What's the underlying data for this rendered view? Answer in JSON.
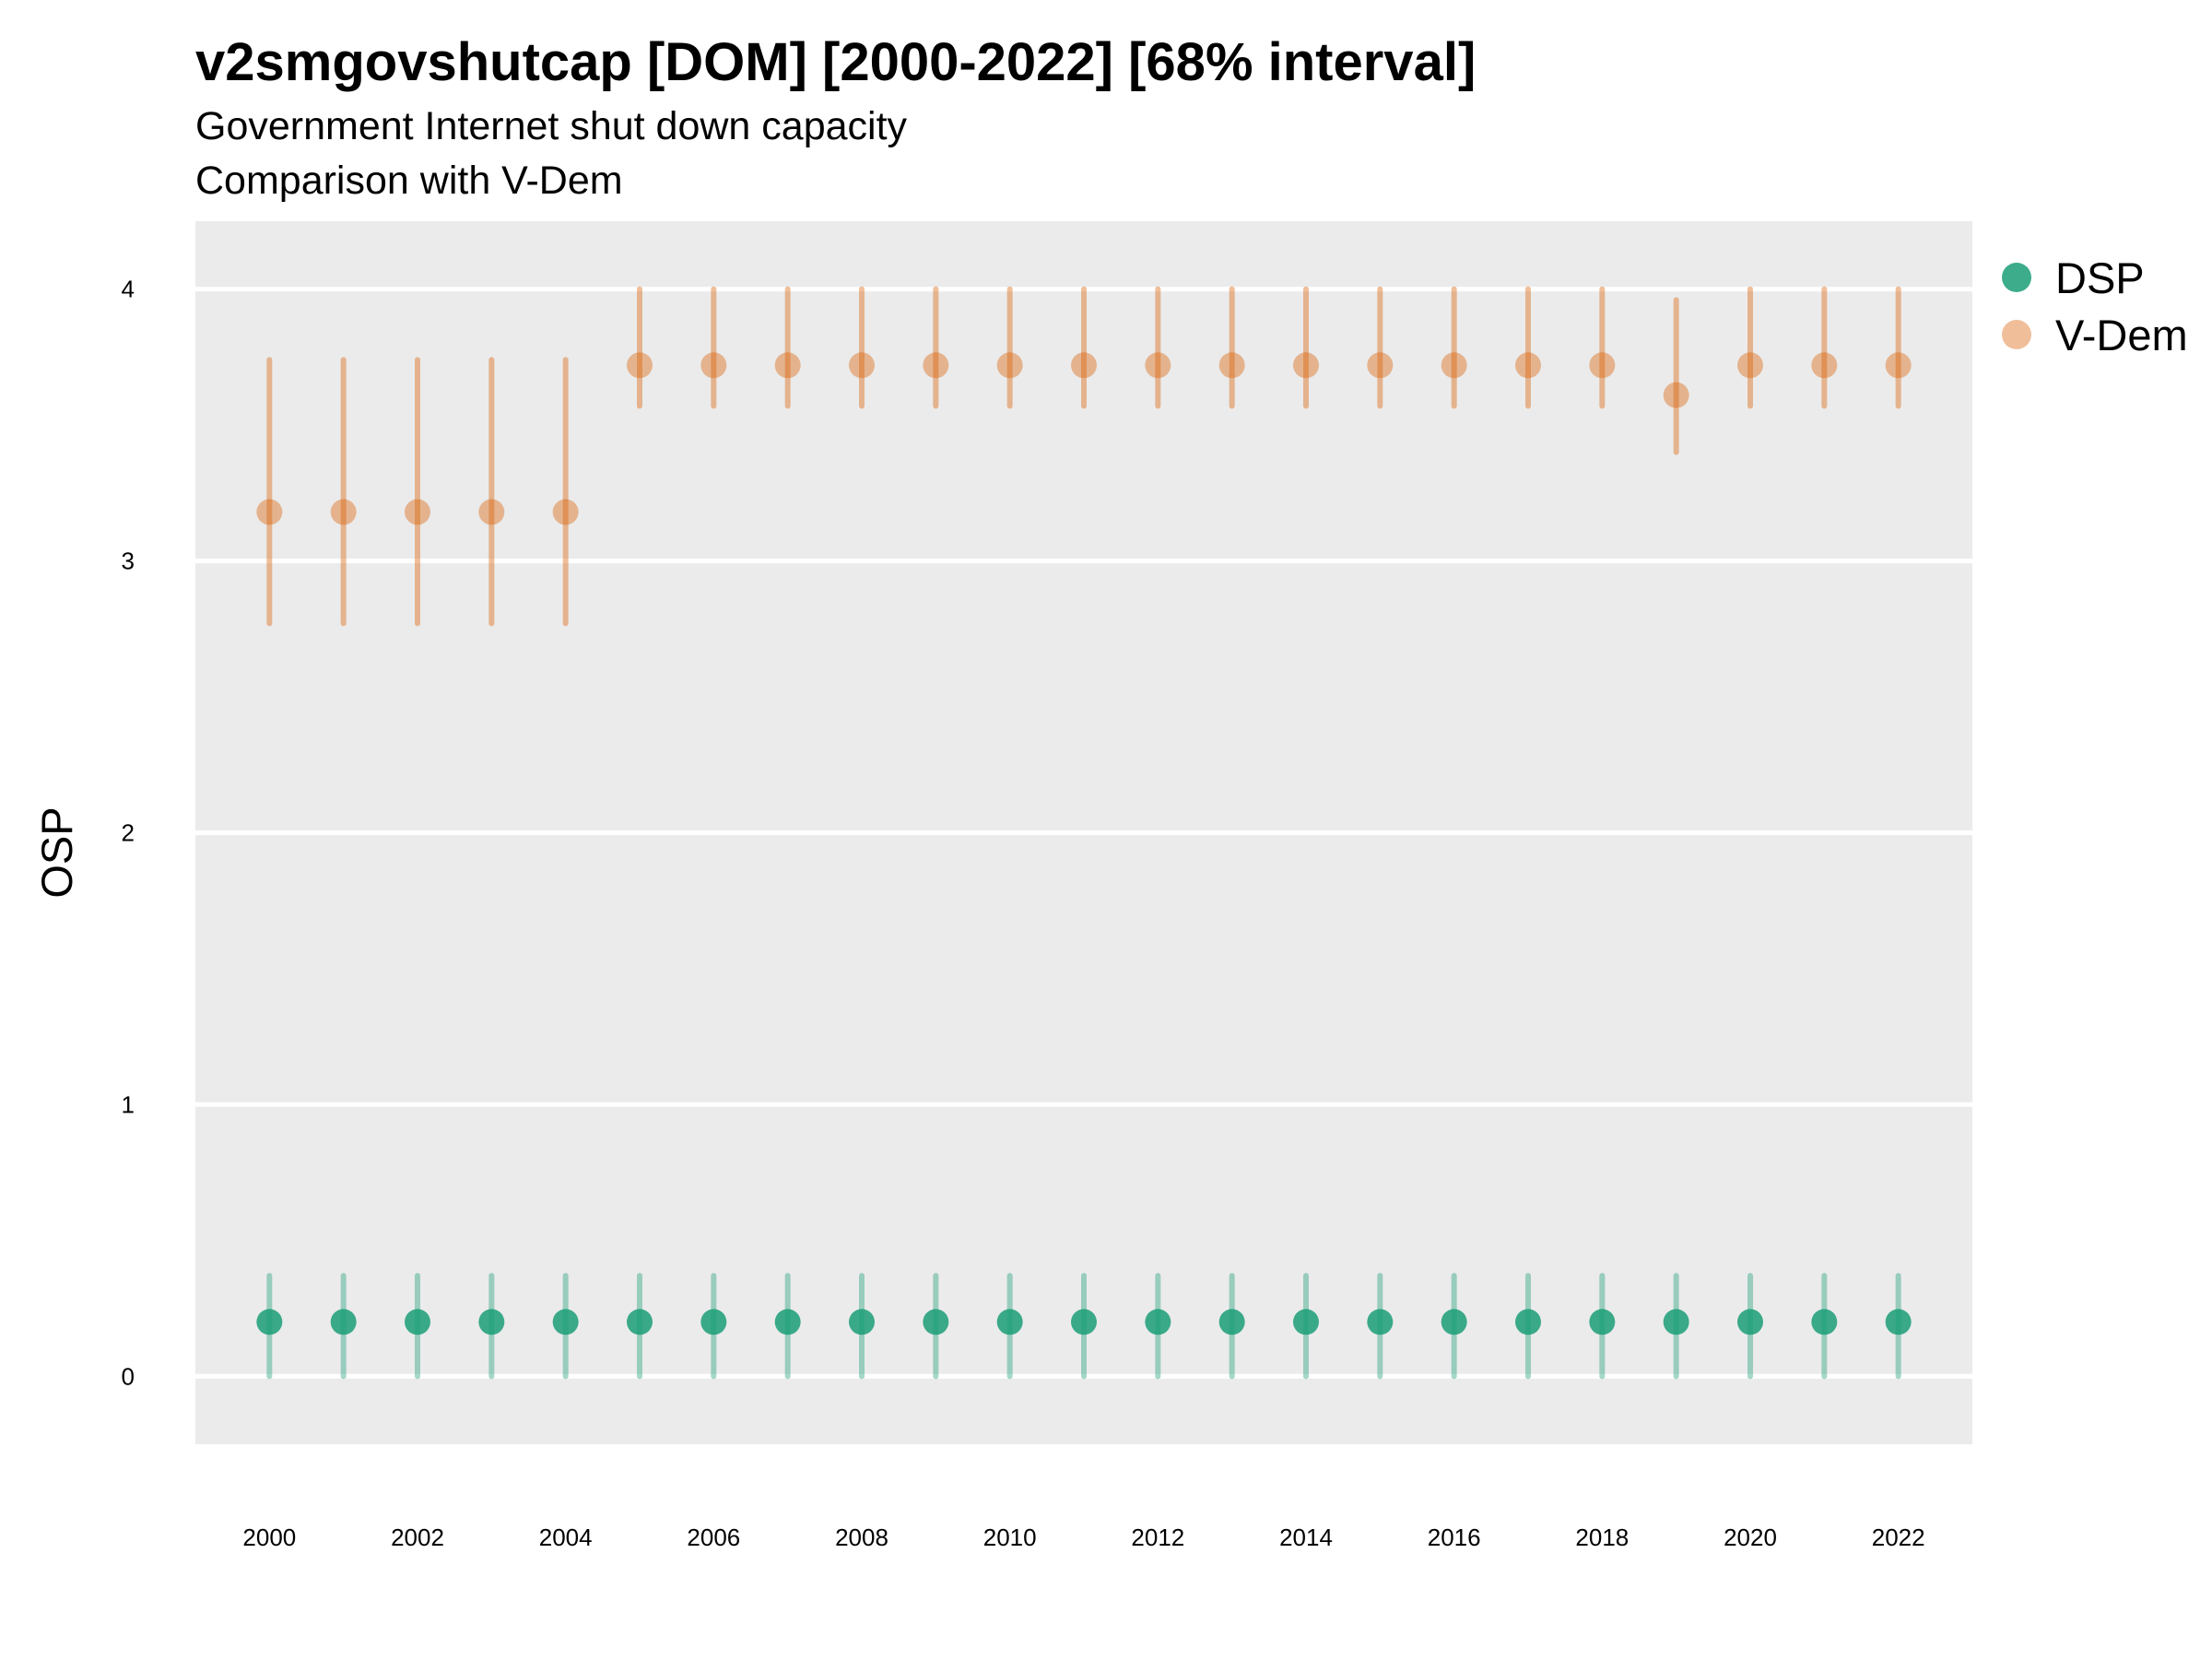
{
  "chart_data": {
    "type": "scatter",
    "title": "v2smgovshutcap [DOM] [2000-2022] [68% interval]",
    "subtitle": [
      "Government Internet shut down capacity",
      "Comparison with V-Dem"
    ],
    "ylabel": "OSP",
    "xlabel": "",
    "ylim": [
      -0.25,
      4.25
    ],
    "xlim": [
      1999,
      2023
    ],
    "y_ticks": [
      0,
      1,
      2,
      3,
      4
    ],
    "x_ticks": [
      2000,
      2002,
      2004,
      2006,
      2008,
      2010,
      2012,
      2014,
      2016,
      2018,
      2020,
      2022
    ],
    "grid": true,
    "legend_position": "right",
    "x": [
      2000,
      2001,
      2002,
      2003,
      2004,
      2005,
      2006,
      2007,
      2008,
      2009,
      2010,
      2011,
      2012,
      2013,
      2014,
      2015,
      2016,
      2017,
      2018,
      2019,
      2020,
      2021,
      2022
    ],
    "series": [
      {
        "name": "DSP",
        "color": "#1b9e77",
        "values": [
          0.2,
          0.2,
          0.2,
          0.2,
          0.2,
          0.2,
          0.2,
          0.2,
          0.2,
          0.2,
          0.2,
          0.2,
          0.2,
          0.2,
          0.2,
          0.2,
          0.2,
          0.2,
          0.2,
          0.2,
          0.2,
          0.2,
          0.2
        ],
        "lower": [
          0.0,
          0.0,
          0.0,
          0.0,
          0.0,
          0.0,
          0.0,
          0.0,
          0.0,
          0.0,
          0.0,
          0.0,
          0.0,
          0.0,
          0.0,
          0.0,
          0.0,
          0.0,
          0.0,
          0.0,
          0.0,
          0.0,
          0.0
        ],
        "upper": [
          0.37,
          0.37,
          0.37,
          0.37,
          0.37,
          0.37,
          0.37,
          0.37,
          0.37,
          0.37,
          0.37,
          0.37,
          0.37,
          0.37,
          0.37,
          0.37,
          0.37,
          0.37,
          0.37,
          0.37,
          0.37,
          0.37,
          0.37
        ]
      },
      {
        "name": "V-Dem",
        "color": "#d95f02",
        "values": [
          3.18,
          3.18,
          3.18,
          3.18,
          3.18,
          3.72,
          3.72,
          3.72,
          3.72,
          3.72,
          3.72,
          3.72,
          3.72,
          3.72,
          3.72,
          3.72,
          3.72,
          3.72,
          3.72,
          3.61,
          3.72,
          3.72,
          3.72
        ],
        "lower": [
          2.77,
          2.77,
          2.77,
          2.77,
          2.77,
          3.57,
          3.57,
          3.57,
          3.57,
          3.57,
          3.57,
          3.57,
          3.57,
          3.57,
          3.57,
          3.57,
          3.57,
          3.57,
          3.57,
          3.4,
          3.57,
          3.57,
          3.57
        ],
        "upper": [
          3.74,
          3.74,
          3.74,
          3.74,
          3.74,
          4.0,
          4.0,
          4.0,
          4.0,
          4.0,
          4.0,
          4.0,
          4.0,
          4.0,
          4.0,
          4.0,
          4.0,
          4.0,
          4.0,
          3.96,
          4.0,
          4.0,
          4.0
        ]
      }
    ]
  }
}
